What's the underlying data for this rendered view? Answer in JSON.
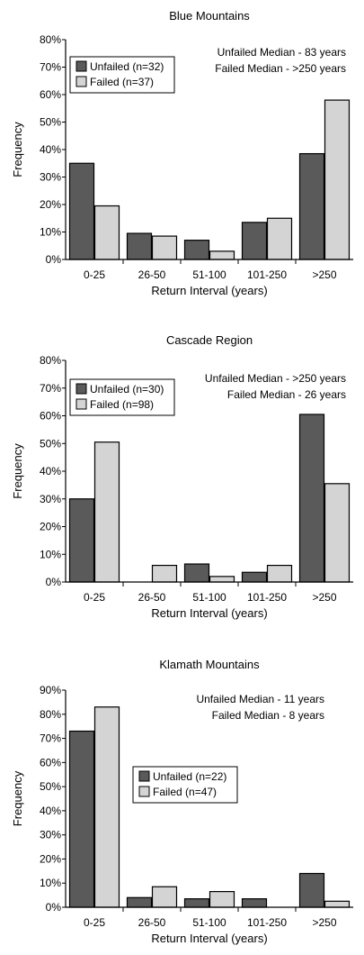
{
  "colors": {
    "unfailed": "#5a5a5a",
    "failed": "#d4d4d4",
    "axis": "#000000"
  },
  "chart_data": [
    {
      "type": "bar",
      "title": "Blue Mountains",
      "xlabel": "Return Interval (years)",
      "ylabel": "Frequency",
      "categories": [
        "0-25",
        "26-50",
        "51-100",
        "101-250",
        ">250"
      ],
      "ylim": [
        0,
        80
      ],
      "yticks": [
        "0%",
        "10%",
        "20%",
        "30%",
        "40%",
        "50%",
        "60%",
        "70%",
        "80%"
      ],
      "series": [
        {
          "name": "Unfailed (n=32)",
          "values": [
            35,
            9.5,
            7,
            13.5,
            38.5
          ]
        },
        {
          "name": "Failed (n=37)",
          "values": [
            19.5,
            8.5,
            3,
            15,
            58
          ]
        }
      ],
      "annotations": [
        "Unfailed Median - 83 years",
        "Failed Median - >250 years"
      ],
      "legend_position": "top-left",
      "grid": false
    },
    {
      "type": "bar",
      "title": "Cascade Region",
      "xlabel": "Return Interval (years)",
      "ylabel": "Frequency",
      "categories": [
        "0-25",
        "26-50",
        "51-100",
        "101-250",
        ">250"
      ],
      "ylim": [
        0,
        80
      ],
      "yticks": [
        "0%",
        "10%",
        "20%",
        "30%",
        "40%",
        "50%",
        "60%",
        "70%",
        "80%"
      ],
      "series": [
        {
          "name": "Unfailed (n=30)",
          "values": [
            30,
            0,
            6.5,
            3.5,
            60.5
          ]
        },
        {
          "name": "Failed (n=98)",
          "values": [
            50.5,
            6,
            2,
            6,
            35.5
          ]
        }
      ],
      "annotations": [
        "Unfailed Median - >250 years",
        "Failed Median - 26 years"
      ],
      "legend_position": "top-left",
      "grid": false
    },
    {
      "type": "bar",
      "title": "Klamath Mountains",
      "xlabel": "Return Interval (years)",
      "ylabel": "Frequency",
      "categories": [
        "0-25",
        "26-50",
        "51-100",
        "101-250",
        ">250"
      ],
      "ylim": [
        0,
        90
      ],
      "yticks": [
        "0%",
        "10%",
        "20%",
        "30%",
        "40%",
        "50%",
        "60%",
        "70%",
        "80%",
        "90%"
      ],
      "series": [
        {
          "name": "Unfailed (n=22)",
          "values": [
            73,
            4,
            3.5,
            3.5,
            14
          ]
        },
        {
          "name": "Failed (n=47)",
          "values": [
            83,
            8.5,
            6.5,
            0,
            2.5
          ]
        }
      ],
      "annotations": [
        "Unfailed Median - 11 years",
        "Failed Median - 8 years"
      ],
      "legend_position": "center",
      "grid": false
    }
  ]
}
